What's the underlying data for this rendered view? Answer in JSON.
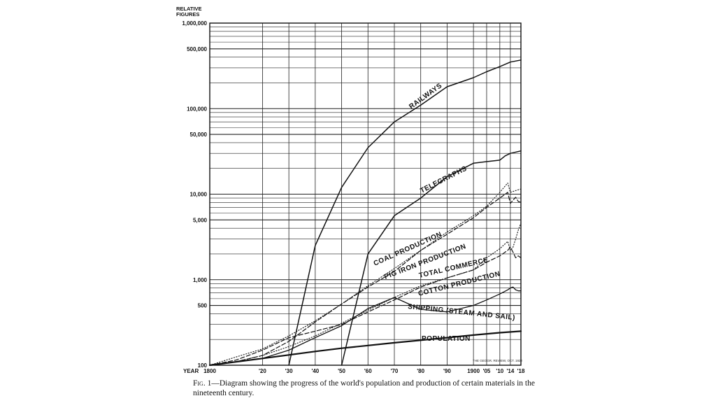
{
  "chart_data": {
    "type": "line",
    "y_axis_title": [
      "RELATIVE",
      "FIGURES"
    ],
    "y_scale": "log",
    "ylim": [
      100,
      1000000
    ],
    "y_ticks": [
      {
        "value": 100,
        "label": "100"
      },
      {
        "value": 500,
        "label": "500"
      },
      {
        "value": 1000,
        "label": "1,000"
      },
      {
        "value": 5000,
        "label": "5,000"
      },
      {
        "value": 10000,
        "label": "10,000"
      },
      {
        "value": 50000,
        "label": "50,000"
      },
      {
        "value": 100000,
        "label": "100,000"
      },
      {
        "value": 500000,
        "label": "500,000"
      },
      {
        "value": 1000000,
        "label": "1,000,000"
      }
    ],
    "xlim": [
      1800,
      1918
    ],
    "x_axis_prefix": "YEAR",
    "x_ticks": [
      {
        "value": 1800,
        "label": "1800"
      },
      {
        "value": 1820,
        "label": "'20"
      },
      {
        "value": 1830,
        "label": "'30"
      },
      {
        "value": 1840,
        "label": "'40"
      },
      {
        "value": 1850,
        "label": "'50"
      },
      {
        "value": 1860,
        "label": "'60"
      },
      {
        "value": 1870,
        "label": "'70"
      },
      {
        "value": 1880,
        "label": "'80"
      },
      {
        "value": 1890,
        "label": "'90"
      },
      {
        "value": 1900,
        "label": "1900"
      },
      {
        "value": 1905,
        "label": "'05"
      },
      {
        "value": 1910,
        "label": "'10"
      },
      {
        "value": 1914,
        "label": "'14"
      },
      {
        "value": 1918,
        "label": "'18"
      }
    ],
    "grid": true,
    "credit": "THE GEOGR. REVIEW, OCT. 1922",
    "series": [
      {
        "name": "RAILWAYS",
        "style": "solid",
        "width": 1.5,
        "x": [
          1830,
          1840,
          1850,
          1860,
          1870,
          1880,
          1890,
          1900,
          1905,
          1910,
          1914,
          1918
        ],
        "y": [
          100,
          2500,
          12000,
          35000,
          70000,
          110000,
          180000,
          230000,
          270000,
          310000,
          350000,
          370000
        ]
      },
      {
        "name": "TELEGRAPHS",
        "style": "solid",
        "width": 1.5,
        "x": [
          1850,
          1860,
          1870,
          1880,
          1890,
          1900,
          1905,
          1910,
          1912,
          1914,
          1918
        ],
        "y": [
          100,
          2000,
          5600,
          9000,
          16000,
          23000,
          24000,
          25000,
          28000,
          30000,
          32000
        ]
      },
      {
        "name": "COAL PRODUCTION",
        "style": "dotted",
        "width": 1.1,
        "x": [
          1800,
          1810,
          1820,
          1830,
          1840,
          1850,
          1860,
          1870,
          1880,
          1890,
          1900,
          1905,
          1910,
          1913,
          1914,
          1916,
          1918
        ],
        "y": [
          100,
          125,
          155,
          220,
          330,
          520,
          850,
          1350,
          2200,
          3600,
          5600,
          7200,
          10500,
          13500,
          10500,
          11000,
          11500
        ]
      },
      {
        "name": "PIG IRON PRODUCTION",
        "style": "dashed",
        "width": 1.2,
        "x": [
          1800,
          1810,
          1820,
          1830,
          1840,
          1850,
          1860,
          1870,
          1880,
          1890,
          1900,
          1905,
          1910,
          1913,
          1914,
          1915,
          1916,
          1917,
          1918
        ],
        "y": [
          100,
          110,
          130,
          190,
          320,
          520,
          820,
          1250,
          2200,
          3400,
          5300,
          7000,
          9000,
          10500,
          7800,
          8500,
          9200,
          8200,
          8000
        ]
      },
      {
        "name": "TOTAL COMMERCE",
        "style": "dotted",
        "width": 1.1,
        "x": [
          1800,
          1810,
          1820,
          1830,
          1840,
          1850,
          1860,
          1870,
          1880,
          1890,
          1900,
          1905,
          1910,
          1913,
          1914,
          1915,
          1916,
          1917,
          1918
        ],
        "y": [
          100,
          110,
          130,
          165,
          220,
          310,
          440,
          620,
          850,
          1050,
          1300,
          1800,
          2300,
          2800,
          2200,
          2400,
          3000,
          3800,
          4600
        ]
      },
      {
        "name": "COTTON PRODUCTION",
        "style": "dashed",
        "width": 1.2,
        "x": [
          1800,
          1810,
          1820,
          1830,
          1840,
          1850,
          1860,
          1870,
          1880,
          1890,
          1900,
          1905,
          1910,
          1913,
          1914,
          1915,
          1916,
          1917,
          1918
        ],
        "y": [
          100,
          115,
          150,
          210,
          250,
          300,
          420,
          580,
          820,
          1050,
          1300,
          1600,
          1900,
          2200,
          2400,
          2100,
          1800,
          1900,
          1800
        ]
      },
      {
        "name": "SHIPPING (STEAM AND SAIL)",
        "style": "solid",
        "width": 1.3,
        "x": [
          1800,
          1810,
          1820,
          1830,
          1840,
          1850,
          1860,
          1870,
          1880,
          1890,
          1900,
          1905,
          1910,
          1913,
          1914,
          1915,
          1916,
          1917,
          1918
        ],
        "y": [
          100,
          110,
          120,
          150,
          210,
          290,
          460,
          620,
          450,
          420,
          500,
          580,
          680,
          760,
          800,
          820,
          760,
          740,
          740
        ]
      },
      {
        "name": "POPULATION",
        "style": "solid",
        "width": 2.2,
        "x": [
          1800,
          1820,
          1840,
          1850,
          1860,
          1870,
          1880,
          1890,
          1900,
          1910,
          1918
        ],
        "y": [
          100,
          120,
          145,
          158,
          170,
          183,
          196,
          210,
          225,
          240,
          250
        ]
      }
    ],
    "series_labels": [
      {
        "series": 0,
        "text": "RAILWAYS"
      },
      {
        "series": 1,
        "text": "TELEGRAPHS"
      },
      {
        "series": 2,
        "text": "COAL PRODUCTION"
      },
      {
        "series": 3,
        "text": "PIG IRON PRODUCTION"
      },
      {
        "series": 4,
        "text": "TOTAL COMMERCE"
      },
      {
        "series": 5,
        "text": "COTTON PRODUCTION"
      },
      {
        "series": 6,
        "text": "SHIPPING (STEAM AND SAIL)"
      },
      {
        "series": 7,
        "text": "POPULATION"
      }
    ]
  },
  "caption": {
    "fig_label": "Fig. 1",
    "text": "—Diagram showing the progress of the world's population and production of certain materials in the nineteenth century."
  }
}
